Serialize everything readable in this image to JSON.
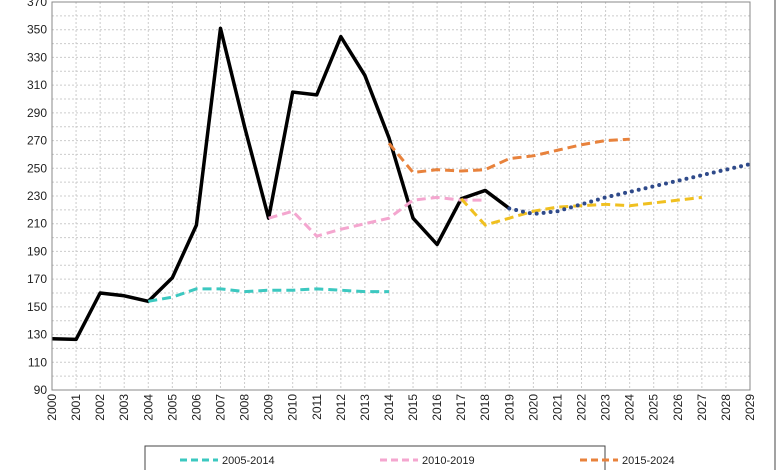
{
  "chart_data": {
    "type": "line",
    "title": "",
    "xlabel": "",
    "ylabel": "",
    "xlim": [
      2000,
      2029
    ],
    "ylim": [
      90,
      370
    ],
    "y_ticks": [
      90,
      110,
      130,
      150,
      170,
      190,
      210,
      230,
      250,
      270,
      290,
      310,
      330,
      350,
      370
    ],
    "x_ticks": [
      2000,
      2001,
      2002,
      2003,
      2004,
      2005,
      2006,
      2007,
      2008,
      2009,
      2010,
      2011,
      2012,
      2013,
      2014,
      2015,
      2016,
      2017,
      2018,
      2019,
      2020,
      2021,
      2022,
      2023,
      2024,
      2025,
      2026,
      2027,
      2028,
      2029
    ],
    "grid": true,
    "legend_position": "bottom",
    "series": [
      {
        "color": "#000000",
        "style": "solid",
        "x": [
          2000,
          2001,
          2002,
          2003,
          2004,
          2005,
          2006,
          2007,
          2008,
          2009,
          2010,
          2011,
          2012,
          2013,
          2014,
          2015,
          2016,
          2017,
          2018,
          2019
        ],
        "y": [
          127,
          126.5,
          160,
          158,
          154,
          171,
          209,
          351,
          280,
          214,
          305,
          303,
          345,
          317,
          272,
          214,
          195,
          228,
          234,
          221
        ]
      },
      {
        "name": "2005-2014",
        "color": "#3cc8c0",
        "style": "dashed",
        "x": [
          2004,
          2005,
          2006,
          2007,
          2008,
          2009,
          2010,
          2011,
          2012,
          2013,
          2014
        ],
        "y": [
          154,
          157,
          163,
          163,
          161,
          162,
          162,
          163,
          162,
          161,
          161
        ]
      },
      {
        "name": "2010-2019",
        "color": "#f4a6cf",
        "style": "dashed",
        "x": [
          2009,
          2010,
          2011,
          2012,
          2013,
          2014,
          2015,
          2016,
          2017,
          2018
        ],
        "y": [
          214,
          219,
          201,
          206,
          210,
          214,
          227,
          229,
          227,
          227
        ]
      },
      {
        "name": "2015-2024",
        "color": "#e8823c",
        "style": "dashed",
        "x": [
          2014,
          2015,
          2016,
          2017,
          2018,
          2019,
          2020,
          2021,
          2022,
          2023,
          2024
        ],
        "y": [
          268,
          247,
          249,
          248,
          249,
          257,
          259,
          263,
          267,
          270,
          271
        ]
      },
      {
        "color": "#f0c020",
        "style": "dashed",
        "x": [
          2017,
          2018,
          2019,
          2020,
          2021,
          2022,
          2023,
          2024,
          2025,
          2026,
          2027
        ],
        "y": [
          228,
          209,
          214,
          219,
          222,
          223,
          224,
          223,
          225,
          227,
          229
        ]
      },
      {
        "color": "#2f4a8a",
        "style": "dotted",
        "x": [
          2019,
          2020,
          2021,
          2022,
          2023,
          2024,
          2025,
          2026,
          2027,
          2028,
          2029
        ],
        "y": [
          221,
          217,
          219,
          224,
          229,
          233,
          237,
          241,
          245,
          249,
          253
        ]
      }
    ]
  }
}
